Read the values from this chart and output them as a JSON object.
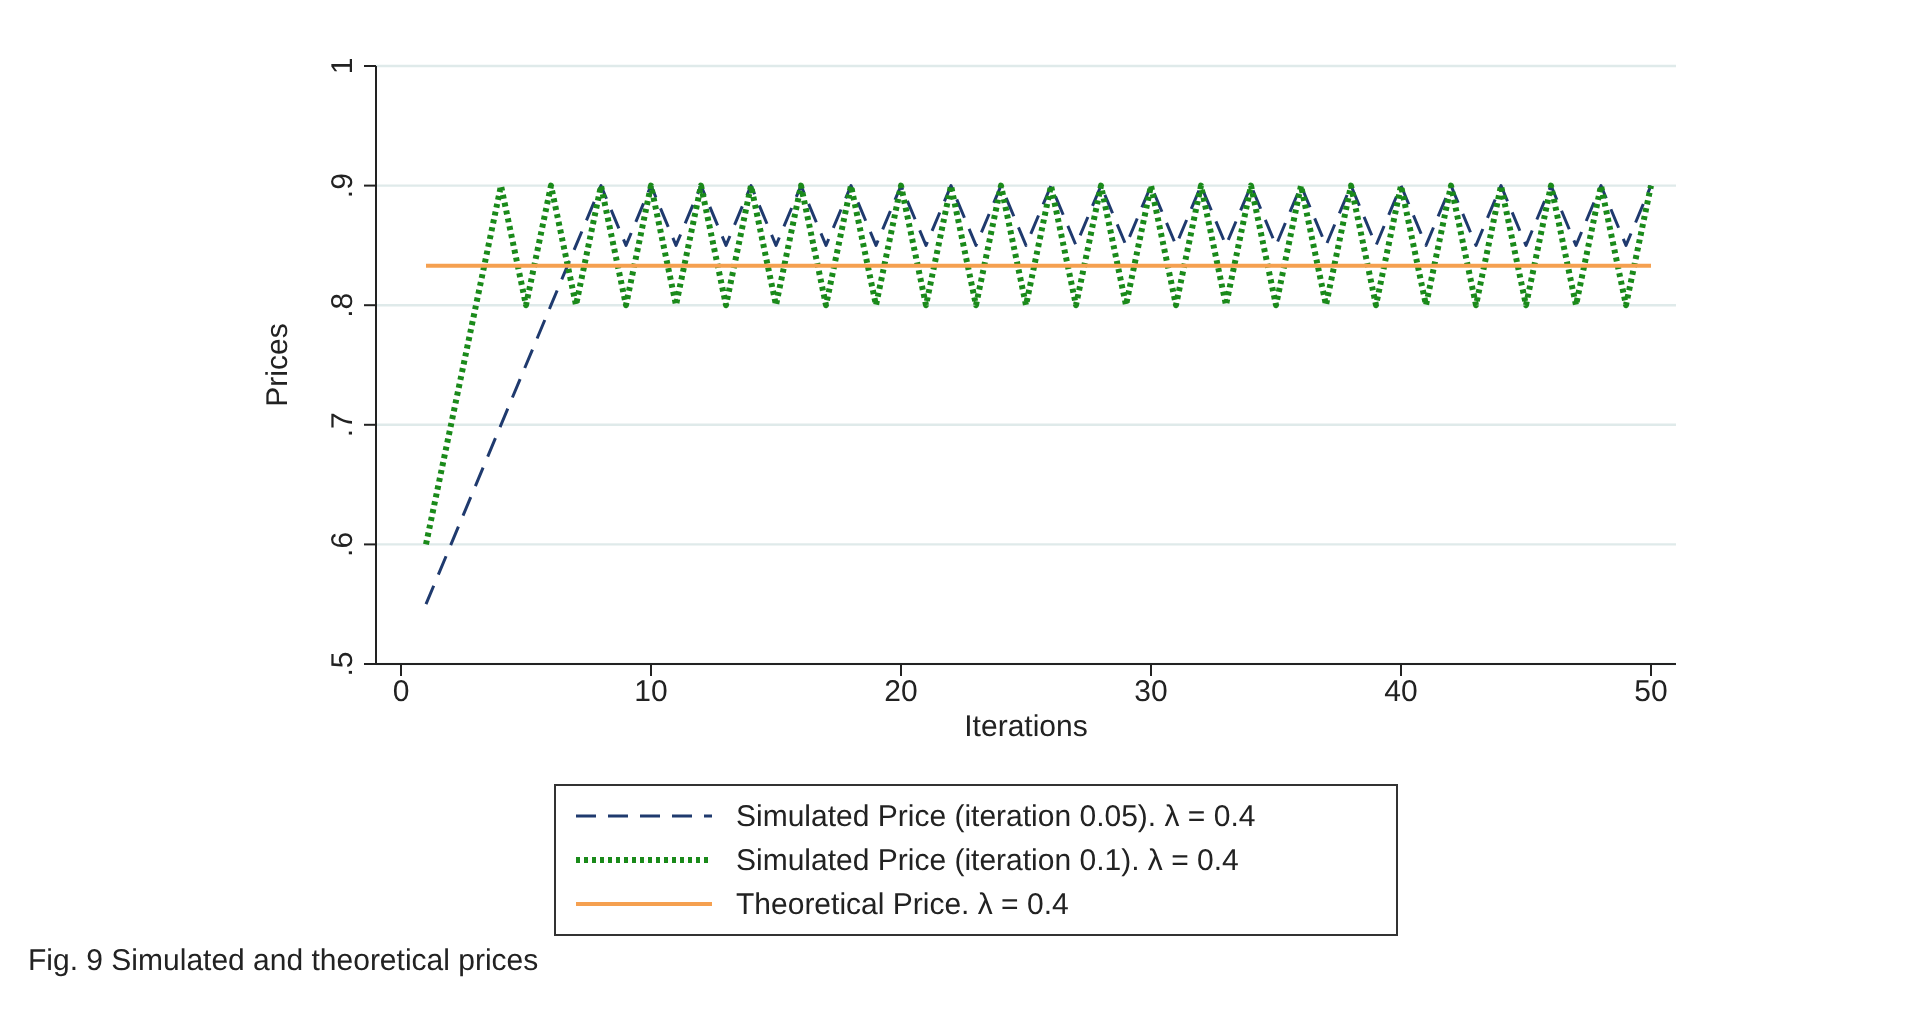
{
  "chart_data": {
    "type": "line",
    "xlabel": "Iterations",
    "ylabel": "Prices",
    "annotations": [
      "Fig. 9  Simulated and theoretical prices"
    ],
    "xlim": [
      -1,
      51
    ],
    "xticks": [
      0,
      10,
      20,
      30,
      40,
      50
    ],
    "ylim": [
      0.5,
      1
    ],
    "yticks": [
      {
        "value": 0.5,
        "label": ".5"
      },
      {
        "value": 0.6,
        "label": ".6"
      },
      {
        "value": 0.7,
        "label": ".7"
      },
      {
        "value": 0.8,
        "label": ".8"
      },
      {
        "value": 0.9,
        "label": ".9"
      },
      {
        "value": 1,
        "label": "1"
      }
    ],
    "grid": "y",
    "legend": "bottom",
    "marker": "none",
    "series": [
      {
        "name": "Simulated Price  (iteration 0.05). λ = 0.4",
        "color": "#1f3a6e",
        "line_style": "dashed",
        "x": [
          1,
          2,
          3,
          4,
          5,
          6,
          7,
          8,
          9,
          10,
          11,
          12,
          13,
          14,
          15,
          16,
          17,
          18,
          19,
          20,
          21,
          22,
          23,
          24,
          25,
          26,
          27,
          28,
          29,
          30,
          31,
          32,
          33,
          34,
          35,
          36,
          37,
          38,
          39,
          40,
          41,
          42,
          43,
          44,
          45,
          46,
          47,
          48,
          49,
          50
        ],
        "values": [
          0.55,
          0.6,
          0.65,
          0.7,
          0.75,
          0.8,
          0.85,
          0.9,
          0.85,
          0.9,
          0.85,
          0.9,
          0.85,
          0.9,
          0.85,
          0.9,
          0.85,
          0.9,
          0.85,
          0.9,
          0.85,
          0.9,
          0.85,
          0.9,
          0.85,
          0.9,
          0.85,
          0.9,
          0.85,
          0.9,
          0.85,
          0.9,
          0.85,
          0.9,
          0.85,
          0.9,
          0.85,
          0.9,
          0.85,
          0.9,
          0.85,
          0.9,
          0.85,
          0.9,
          0.85,
          0.9,
          0.85,
          0.9,
          0.85,
          0.9
        ]
      },
      {
        "name": "Simulated Price  (iteration 0.1). λ = 0.4",
        "color": "#1a8a1a",
        "line_style": "dotted",
        "x": [
          1,
          2,
          3,
          4,
          5,
          6,
          7,
          8,
          9,
          10,
          11,
          12,
          13,
          14,
          15,
          16,
          17,
          18,
          19,
          20,
          21,
          22,
          23,
          24,
          25,
          26,
          27,
          28,
          29,
          30,
          31,
          32,
          33,
          34,
          35,
          36,
          37,
          38,
          39,
          40,
          41,
          42,
          43,
          44,
          45,
          46,
          47,
          48,
          49,
          50
        ],
        "values": [
          0.6,
          0.7,
          0.8,
          0.9,
          0.8,
          0.9,
          0.8,
          0.9,
          0.8,
          0.9,
          0.8,
          0.9,
          0.8,
          0.9,
          0.8,
          0.9,
          0.8,
          0.9,
          0.8,
          0.9,
          0.8,
          0.9,
          0.8,
          0.9,
          0.8,
          0.9,
          0.8,
          0.9,
          0.8,
          0.9,
          0.8,
          0.9,
          0.8,
          0.9,
          0.8,
          0.9,
          0.8,
          0.9,
          0.8,
          0.9,
          0.8,
          0.9,
          0.8,
          0.9,
          0.8,
          0.9,
          0.8,
          0.9,
          0.8,
          0.9
        ]
      },
      {
        "name": "Theoretical Price. λ = 0.4",
        "color": "#f5a050",
        "line_style": "solid",
        "x": [
          1,
          50
        ],
        "values": [
          0.833,
          0.833
        ]
      }
    ]
  }
}
